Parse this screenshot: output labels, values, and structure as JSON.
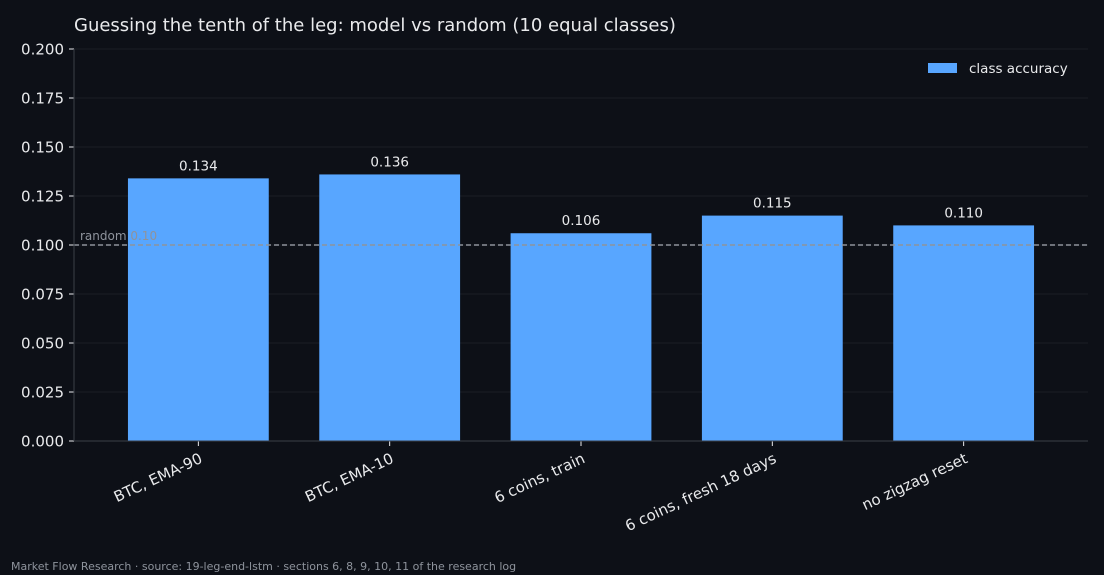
{
  "chart_data": {
    "type": "bar",
    "title": "Guessing the tenth of the leg: model vs random (10 equal classes)",
    "categories": [
      "BTC, EMA-90",
      "BTC, EMA-10",
      "6 coins, train",
      "6 coins, fresh 18 days",
      "no zigzag reset"
    ],
    "series": [
      {
        "name": "class accuracy",
        "values": [
          0.134,
          0.136,
          0.106,
          0.115,
          0.11
        ],
        "labels": [
          "0.134",
          "0.136",
          "0.106",
          "0.115",
          "0.110"
        ]
      }
    ],
    "ylim": [
      0,
      0.2
    ],
    "yticks": [
      0.0,
      0.025,
      0.05,
      0.075,
      0.1,
      0.125,
      0.15,
      0.175,
      0.2
    ],
    "ytick_labels": [
      "0.000",
      "0.025",
      "0.050",
      "0.075",
      "0.100",
      "0.125",
      "0.150",
      "0.175",
      "0.200"
    ],
    "reference_line": {
      "value": 0.1,
      "label": "random 0.10"
    },
    "grid": true,
    "legend_position": "top-right",
    "colors": {
      "bar": "#58a6ff",
      "background": "#0d1017",
      "text": "#e9eaec",
      "muted": "#8e939c",
      "grid": "#1a1e26",
      "axis": "#3a3f47",
      "reference": "#8e939c"
    }
  },
  "footer": {
    "source": "Market Flow Research · source: 19-leg-end-lstm · sections 6, 8, 9, 10, 11 of the research log"
  }
}
